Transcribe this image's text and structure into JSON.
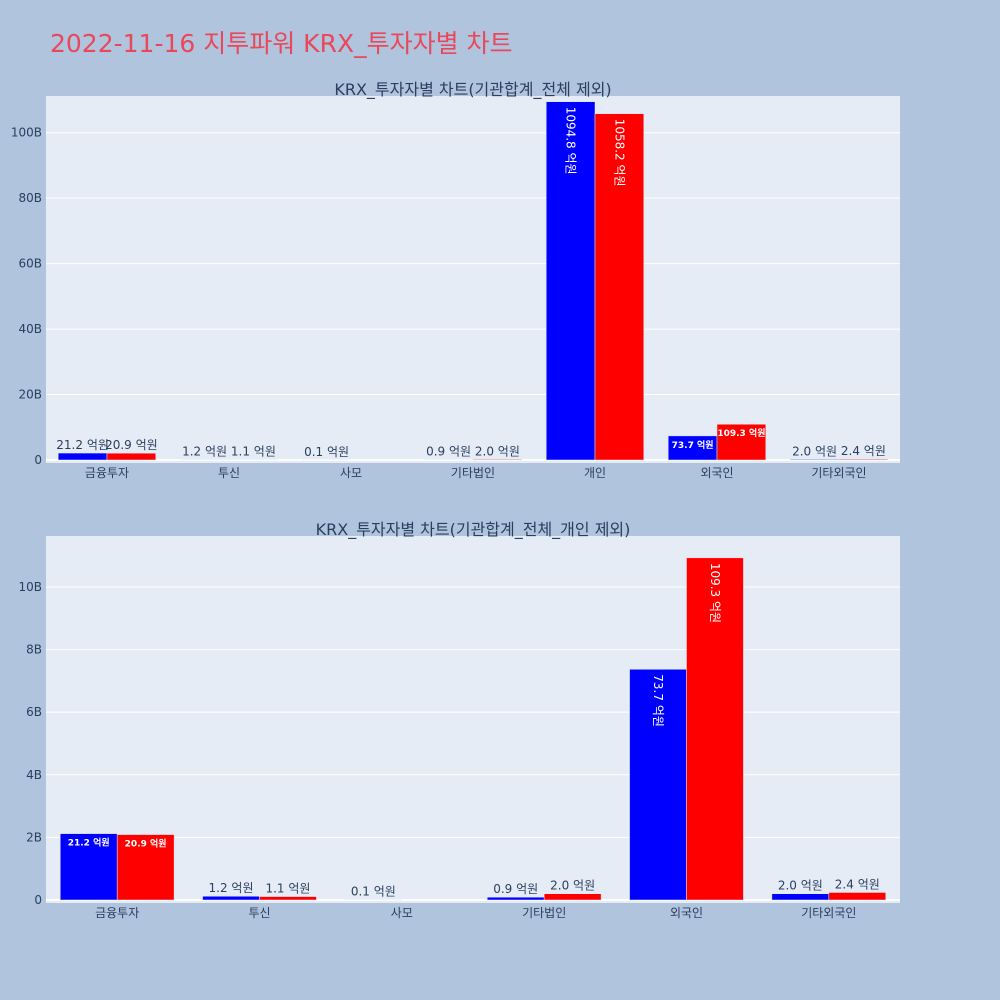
{
  "page": {
    "title": "2022-11-16 지투파워 KRX_투자자별 차트",
    "background": "#b0c4de",
    "title_color": "#e8485a"
  },
  "colors": {
    "series_a": "#0000ff",
    "series_b": "#ff0000",
    "plot_bg": "#e5ecf6",
    "grid": "#ffffff"
  },
  "chart_data": [
    {
      "type": "bar",
      "title": "KRX_투자자별 차트(기관합계_전체 제외)",
      "categories": [
        "금융투자",
        "투신",
        "사모",
        "기타법인",
        "개인",
        "외국인",
        "기타외국인"
      ],
      "ylim": [
        0,
        110
      ],
      "yticks": [
        0,
        20,
        40,
        60,
        80,
        100
      ],
      "ytick_labels": [
        "0",
        "20B",
        "40B",
        "60B",
        "80B",
        "100B"
      ],
      "grid": true,
      "series": [
        {
          "color": "#0000ff",
          "values": [
            2.12,
            0.12,
            0.01,
            0.09,
            109.48,
            7.37,
            0.2
          ],
          "labels": [
            "21.2 억원",
            "1.2 억원",
            "0.1 억원",
            "0.9 억원",
            "1094.8 억원",
            "73.7 억원",
            "2.0 억원"
          ]
        },
        {
          "color": "#ff0000",
          "values": [
            2.09,
            0.11,
            0,
            0.2,
            105.82,
            10.93,
            0.24
          ],
          "labels": [
            "20.9 억원",
            "1.1 억원",
            "",
            "2.0 억원",
            "1058.2 억원",
            "109.3 억원",
            "2.4 억원"
          ]
        }
      ]
    },
    {
      "type": "bar",
      "title": "KRX_투자자별 차트(기관합계_전체_개인 제외)",
      "categories": [
        "금융투자",
        "투신",
        "사모",
        "기타법인",
        "외국인",
        "기타외국인"
      ],
      "ylim": [
        0,
        11.5
      ],
      "yticks": [
        0,
        2,
        4,
        6,
        8,
        10
      ],
      "ytick_labels": [
        "0",
        "2B",
        "4B",
        "6B",
        "8B",
        "10B"
      ],
      "grid": true,
      "series": [
        {
          "color": "#0000ff",
          "values": [
            2.12,
            0.12,
            0.01,
            0.09,
            7.37,
            0.2
          ],
          "labels": [
            "21.2 억원",
            "1.2 억원",
            "0.1 억원",
            "0.9 억원",
            "73.7 억원",
            "2.0 억원"
          ]
        },
        {
          "color": "#ff0000",
          "values": [
            2.09,
            0.11,
            0,
            0.2,
            10.93,
            0.24
          ],
          "labels": [
            "20.9 억원",
            "1.1 억원",
            "",
            "2.0 억원",
            "109.3 억원",
            "2.4 억원"
          ]
        }
      ]
    }
  ]
}
